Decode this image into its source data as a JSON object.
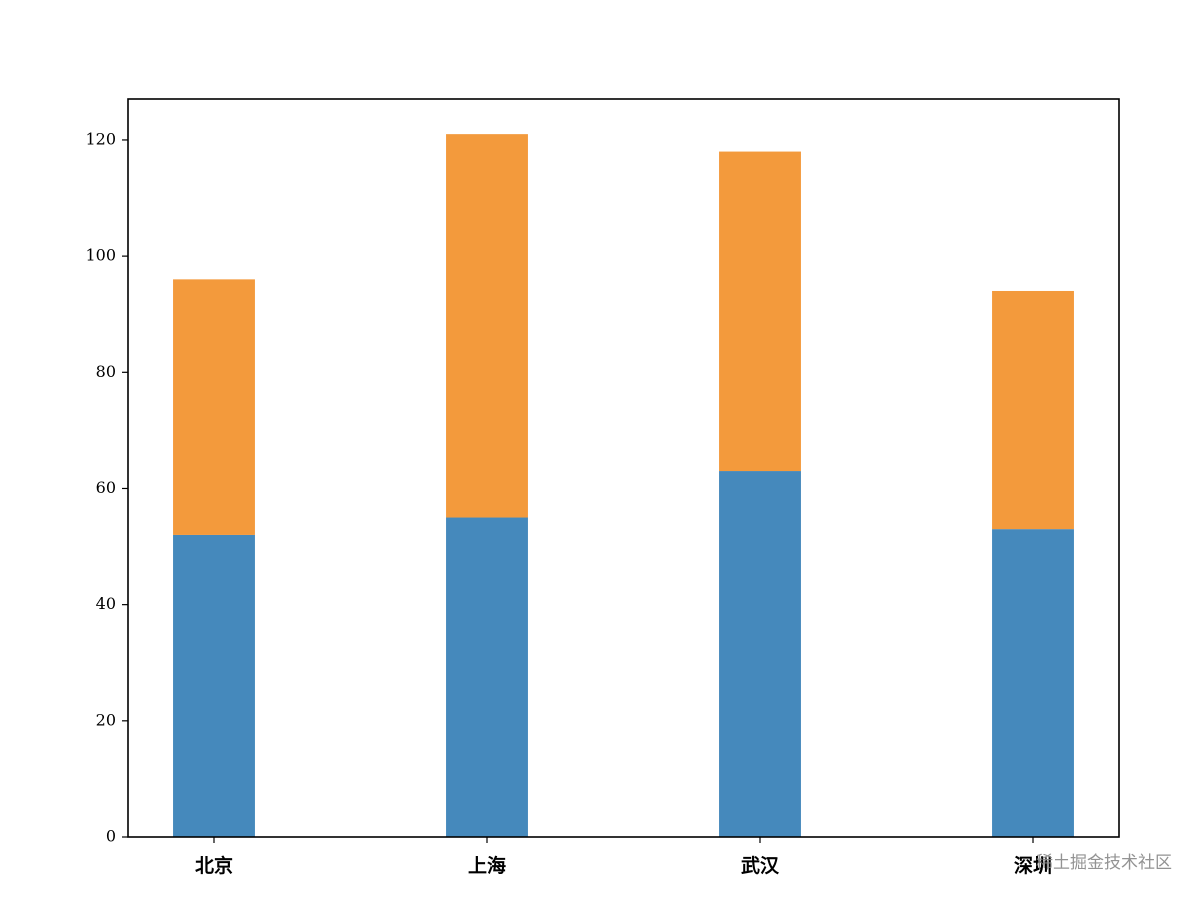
{
  "chart_data": {
    "type": "stacked_bar",
    "categories": [
      "北京",
      "上海",
      "武汉",
      "深圳"
    ],
    "series": [
      {
        "color": "#4589bc",
        "values": [
          52,
          55,
          63,
          53
        ]
      },
      {
        "color": "#f39a3c",
        "values": [
          44,
          66,
          55,
          41
        ]
      }
    ],
    "ylim": [
      0,
      127.05
    ],
    "yticks": [
      0,
      20,
      40,
      60,
      80,
      100,
      120
    ],
    "grid": false,
    "watermark": "稀土掘金技术社区"
  }
}
